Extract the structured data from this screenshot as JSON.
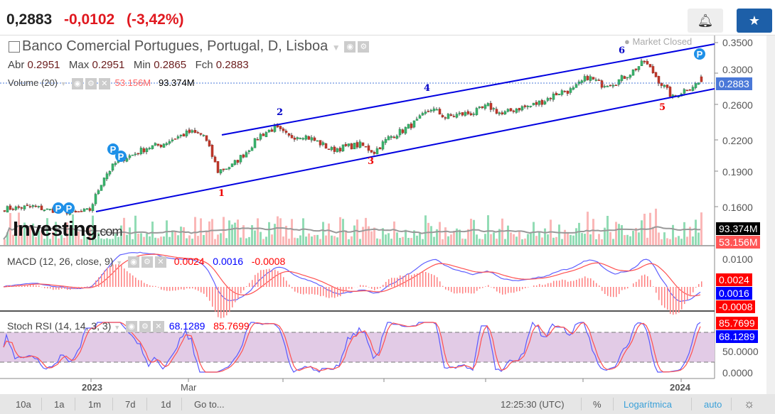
{
  "header": {
    "price": "0,2883",
    "change": "-0,0102",
    "change_pct": "(-3,42%)",
    "alert_icon": "bell-plus-icon",
    "watch_icon": "star-icon",
    "accent": "#1d5fa8"
  },
  "legend": {
    "title": "Banco Comercial Portugues, Portugal, D, Lisboa",
    "market_status": "Market Closed",
    "abr_label": "Abr",
    "abr": "0.2951",
    "max_label": "Max",
    "max": "0.2951",
    "min_label": "Min",
    "min": "0.2865",
    "fch_label": "Fch",
    "fch": "0.2883",
    "volume_label": "Volume (20)",
    "volume_value": "53.156M",
    "volume_ma": "93.374M"
  },
  "macd": {
    "label": "MACD (12, 26, close, 9)",
    "v1": "0.0024",
    "v2": "0.0016",
    "v3": "-0.0008",
    "axis": [
      "0.0100"
    ]
  },
  "stoch": {
    "label": "Stoch RSI (14, 14, 3, 3)",
    "k": "68.1289",
    "d": "85.7699",
    "axis": [
      "50.0000",
      "0.0000"
    ]
  },
  "price_axis": [
    "0.3500",
    "0.3000",
    "0.2600",
    "0.2200",
    "0.1900",
    "0.1600"
  ],
  "current_price_tag": "0.2883",
  "volume_tags": {
    "ma": "93.374M",
    "vol": "53.156M"
  },
  "waves": [
    "1",
    "2",
    "3",
    "4",
    "5",
    "6"
  ],
  "x_axis": [
    "2023",
    "Mar",
    "2024"
  ],
  "watermark": "Investing",
  "watermark_suffix": ".com",
  "event_marker": "P",
  "toolbar": {
    "ranges": [
      "10a",
      "1a",
      "1m",
      "7d",
      "1d"
    ],
    "goto": "Go to...",
    "time": "12:25:30 (UTC)",
    "percent": "%",
    "log": "Logarítmica",
    "auto": "auto",
    "settings_icon": "gear-icon"
  },
  "chart_data": {
    "type": "candlestick",
    "scale": "log",
    "closes_keypoints": [
      0.158,
      0.159,
      0.16,
      0.157,
      0.156,
      0.154,
      0.157,
      0.185,
      0.2,
      0.205,
      0.212,
      0.215,
      0.222,
      0.228,
      0.225,
      0.19,
      0.195,
      0.208,
      0.225,
      0.233,
      0.223,
      0.225,
      0.218,
      0.21,
      0.213,
      0.215,
      0.208,
      0.222,
      0.23,
      0.24,
      0.255,
      0.245,
      0.248,
      0.25,
      0.258,
      0.248,
      0.255,
      0.258,
      0.265,
      0.275,
      0.278,
      0.295,
      0.285,
      0.288,
      0.3,
      0.318,
      0.29,
      0.268,
      0.28,
      0.2883
    ],
    "last": {
      "open": 0.2951,
      "high": 0.2951,
      "low": 0.2865,
      "close": 0.2883
    }
  }
}
